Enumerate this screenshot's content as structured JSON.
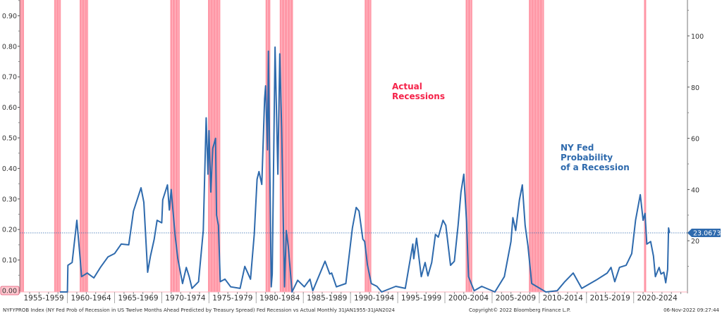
{
  "chart_data": {
    "type": "line",
    "title": "",
    "xlabel": "",
    "ylabel": "",
    "xlim": [
      1953.95,
      2024.7
    ],
    "left_axis": {
      "ylim": [
        0,
        0.95
      ],
      "ticks": [
        "0.00",
        "0.10",
        "0.20",
        "0.30",
        "0.40",
        "0.50",
        "0.60",
        "0.70",
        "0.80",
        "0.90"
      ]
    },
    "right_axis": {
      "ylim": [
        0,
        114
      ],
      "ticks": [
        "20",
        "40",
        "60",
        "80",
        "100"
      ]
    },
    "x_tick_labels": [
      "1955-1959",
      "1960-1964",
      "1965-1969",
      "1970-1974",
      "1975-1979",
      "1980-1984",
      "1985-1989",
      "1990-1994",
      "1995-1999",
      "2000-2004",
      "2005-2009",
      "2010-2014",
      "2015-2019",
      "2020-2024"
    ],
    "recessions": [
      [
        1953.95,
        1954.4
      ],
      [
        1957.6,
        1958.3
      ],
      [
        1960.3,
        1961.2
      ],
      [
        1969.9,
        1970.9
      ],
      [
        1973.9,
        1975.2
      ],
      [
        1980.0,
        1980.5
      ],
      [
        1981.5,
        1982.9
      ],
      [
        1990.5,
        1991.2
      ],
      [
        2001.2,
        2001.9
      ],
      [
        2007.9,
        2009.5
      ],
      [
        2020.1,
        2020.3
      ]
    ],
    "series": [
      {
        "name": "NY Fed Probability of a Recession",
        "axis": "right",
        "color": "#2e6aad",
        "points": [
          [
            1958.2,
            0
          ],
          [
            1959.0,
            0
          ],
          [
            1959.05,
            10.4
          ],
          [
            1959.5,
            11.5
          ],
          [
            1960.0,
            28
          ],
          [
            1960.35,
            13
          ],
          [
            1960.5,
            6
          ],
          [
            1961.1,
            7.4
          ],
          [
            1961.8,
            5.5
          ],
          [
            1962.5,
            9.6
          ],
          [
            1963.3,
            13.7
          ],
          [
            1964.0,
            15
          ],
          [
            1964.7,
            18.7
          ],
          [
            1965.5,
            18.4
          ],
          [
            1966.0,
            31.6
          ],
          [
            1966.8,
            40.7
          ],
          [
            1967.1,
            35
          ],
          [
            1967.5,
            7.7
          ],
          [
            1967.8,
            14
          ],
          [
            1968.2,
            20.6
          ],
          [
            1968.5,
            28
          ],
          [
            1969.0,
            27
          ],
          [
            1969.1,
            36
          ],
          [
            1969.6,
            41.8
          ],
          [
            1969.8,
            32
          ],
          [
            1970.0,
            40
          ],
          [
            1970.4,
            22.5
          ],
          [
            1970.7,
            13
          ],
          [
            1971.2,
            3.3
          ],
          [
            1971.6,
            9.6
          ],
          [
            1971.9,
            6
          ],
          [
            1972.2,
            1.4
          ],
          [
            1972.9,
            4
          ],
          [
            1973.4,
            24
          ],
          [
            1973.7,
            68
          ],
          [
            1973.9,
            46
          ],
          [
            1974.0,
            63
          ],
          [
            1974.2,
            39
          ],
          [
            1974.4,
            56
          ],
          [
            1974.7,
            60
          ],
          [
            1974.8,
            30
          ],
          [
            1975.0,
            26
          ],
          [
            1975.2,
            4
          ],
          [
            1975.7,
            5
          ],
          [
            1976.3,
            2
          ],
          [
            1977.3,
            1.4
          ],
          [
            1977.8,
            10
          ],
          [
            1978.4,
            5
          ],
          [
            1978.8,
            22.5
          ],
          [
            1979.1,
            44
          ],
          [
            1979.3,
            47
          ],
          [
            1979.6,
            42
          ],
          [
            1979.9,
            75.5
          ],
          [
            1980.0,
            80.5
          ],
          [
            1980.2,
            55.5
          ],
          [
            1980.3,
            94
          ],
          [
            1980.6,
            2
          ],
          [
            1980.7,
            7
          ],
          [
            1981.0,
            95.6
          ],
          [
            1981.3,
            46
          ],
          [
            1981.5,
            93
          ],
          [
            1981.7,
            64.5
          ],
          [
            1982.0,
            2
          ],
          [
            1982.2,
            24
          ],
          [
            1982.4,
            18
          ],
          [
            1982.8,
            0
          ],
          [
            1983.4,
            4.6
          ],
          [
            1984.1,
            2
          ],
          [
            1984.7,
            5
          ],
          [
            1985.0,
            0.5
          ],
          [
            1986.3,
            12
          ],
          [
            1986.8,
            7
          ],
          [
            1987.0,
            7.4
          ],
          [
            1987.5,
            2
          ],
          [
            1988.5,
            3.3
          ],
          [
            1989.2,
            25
          ],
          [
            1989.6,
            33
          ],
          [
            1989.9,
            31.6
          ],
          [
            1990.3,
            20.6
          ],
          [
            1990.5,
            19.7
          ],
          [
            1990.8,
            10.4
          ],
          [
            1991.2,
            3.3
          ],
          [
            1991.8,
            2.2
          ],
          [
            1992.3,
            0
          ],
          [
            1993.8,
            2.2
          ],
          [
            1994.8,
            1.4
          ],
          [
            1995.6,
            18.7
          ],
          [
            1995.7,
            13
          ],
          [
            1996.0,
            21
          ],
          [
            1996.5,
            6
          ],
          [
            1996.9,
            11.5
          ],
          [
            1997.2,
            6.3
          ],
          [
            1997.6,
            11.5
          ],
          [
            1998.0,
            22.5
          ],
          [
            1998.3,
            21.4
          ],
          [
            1998.8,
            28
          ],
          [
            1999.1,
            26
          ],
          [
            1999.6,
            10.4
          ],
          [
            2000.0,
            12
          ],
          [
            2000.4,
            26
          ],
          [
            2000.7,
            39
          ],
          [
            2001.0,
            46
          ],
          [
            2001.3,
            27
          ],
          [
            2001.5,
            6
          ],
          [
            2002.1,
            0.5
          ],
          [
            2002.9,
            2.2
          ],
          [
            2004.3,
            0
          ],
          [
            2005.3,
            6
          ],
          [
            2006.0,
            19.7
          ],
          [
            2006.2,
            29
          ],
          [
            2006.5,
            24
          ],
          [
            2006.9,
            36
          ],
          [
            2007.2,
            41.8
          ],
          [
            2007.5,
            26
          ],
          [
            2007.8,
            18
          ],
          [
            2008.2,
            3.3
          ],
          [
            2008.7,
            2.2
          ],
          [
            2009.7,
            0
          ],
          [
            2010.9,
            0.5
          ],
          [
            2011.7,
            4
          ],
          [
            2012.6,
            7.4
          ],
          [
            2013.5,
            1.4
          ],
          [
            2015.0,
            4.6
          ],
          [
            2016.2,
            7.4
          ],
          [
            2016.6,
            9.6
          ],
          [
            2017.0,
            4
          ],
          [
            2017.5,
            9.6
          ],
          [
            2018.2,
            10.4
          ],
          [
            2018.8,
            15
          ],
          [
            2019.2,
            28
          ],
          [
            2019.7,
            38
          ],
          [
            2020.0,
            28
          ],
          [
            2020.2,
            30.7
          ],
          [
            2020.4,
            18.7
          ],
          [
            2020.8,
            19.7
          ],
          [
            2021.1,
            14
          ],
          [
            2021.3,
            6
          ],
          [
            2021.7,
            9.6
          ],
          [
            2021.9,
            7
          ],
          [
            2022.2,
            7.7
          ],
          [
            2022.4,
            3.6
          ],
          [
            2022.6,
            8.8
          ],
          [
            2022.7,
            25
          ],
          [
            2022.8,
            23.0673
          ]
        ]
      }
    ],
    "last_value_label": "23.0673",
    "reference_line": 23.0673,
    "recession_color": "#ff8c9c",
    "annotations": {
      "recessions": [
        "Actual",
        "Recessions"
      ],
      "probability": [
        "NY Fed",
        "Probability",
        "of a Recession"
      ]
    },
    "annotation_colors": {
      "recessions": "#f5234a",
      "probability": "#2e6aad"
    }
  },
  "footer": {
    "source": "NYFYPROB Index (NY Fed Prob of Recession in US Twelve Months Ahead Predicted by Treasury Spread) Fed Recession vs Actual  Monthly 31JAN1955-31JAN2024",
    "copyright": "Copyright© 2022 Bloomberg Finance L.P.",
    "timestamp": "06-Nov-2022 09:27:44"
  }
}
